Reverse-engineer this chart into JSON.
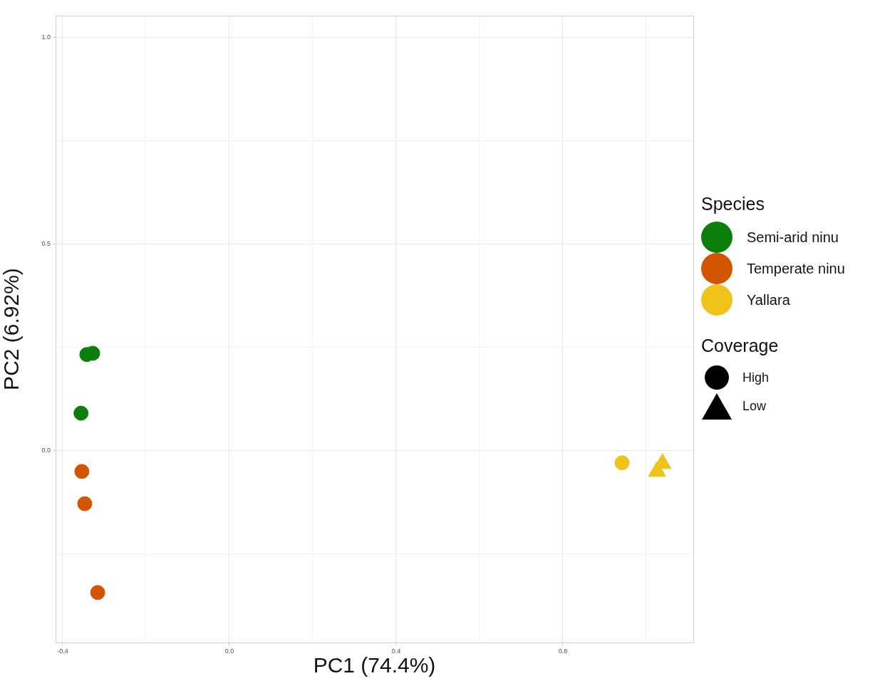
{
  "chart_data": {
    "type": "scatter",
    "xlabel": "PC1 (74.4%)",
    "ylabel": "PC2 (6.92%)",
    "legend_title": "Species",
    "series": [
      {
        "name": "Semi-arid ninu",
        "color": "#0b7f0b",
        "marker": "circle",
        "x": [
          -0.342,
          -0.328,
          -0.356
        ],
        "values": [
          0.233,
          0.236,
          0.091
        ]
      },
      {
        "name": "Temperate ninu",
        "color": "#d45500",
        "marker": "circle",
        "x": [
          -0.354,
          -0.347,
          -0.316
        ],
        "values": [
          -0.05,
          -0.128,
          -0.343
        ]
      },
      {
        "name": "Yallara",
        "color": "#efc31a",
        "marker": "circle",
        "x": [
          0.942
        ],
        "values": [
          -0.029
        ]
      },
      {
        "color": "#efc31a",
        "marker": "triangle",
        "x": [
          1.039,
          1.026
        ],
        "values": [
          -0.031,
          -0.05
        ]
      }
    ],
    "xlim": [
      -0.417,
      1.113
    ],
    "ylim": [
      -0.464,
      1.053
    ],
    "xticks": [
      -0.4,
      {
        "value": -0.2,
        "label": null
      },
      {
        "value": 0.0,
        "label": "0.0"
      },
      {
        "value": 0.2,
        "label": null
      },
      0.4,
      {
        "value": 0.6,
        "label": null
      },
      0.8,
      {
        "value": 1.0,
        "label": null
      }
    ],
    "yticks": [
      {
        "value": -0.25,
        "label": null
      },
      {
        "value": 0.0,
        "label": "0.0"
      },
      {
        "value": 0.25,
        "label": null
      },
      0.5,
      {
        "value": 0.75,
        "label": null
      },
      {
        "value": 1.0,
        "label": "1.0"
      }
    ],
    "grid": true,
    "legend": "right",
    "annotations": [
      "Coverage",
      "High",
      "Low"
    ]
  }
}
